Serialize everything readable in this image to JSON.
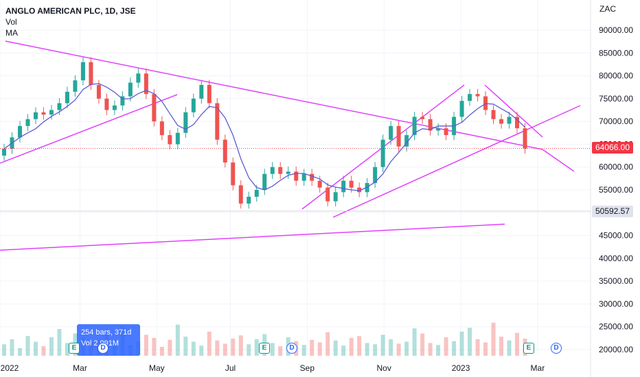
{
  "legend": {
    "title": "ANGLO AMERICAN PLC, 1D, JSE",
    "vol": "Vol",
    "ma": "MA"
  },
  "currency": "ZAC",
  "colors": {
    "up": "#26a69a",
    "down": "#ef5350",
    "ma": "#5b5bd6",
    "trendline": "#e040fb"
  },
  "price_tags": {
    "last": "64066.00",
    "marker": "50592.57"
  },
  "tooltip": {
    "line1": "254 bars, 371d",
    "line2": "Vol 2.991M"
  },
  "events": [
    "E",
    "D",
    "E",
    "D",
    "E",
    "D"
  ],
  "chart_data": {
    "type": "candlestick",
    "title": "ANGLO AMERICAN PLC, 1D, JSE",
    "x_ticks": [
      "2022",
      "Mar",
      "May",
      "Jul",
      "Sep",
      "Nov",
      "2023",
      "Mar"
    ],
    "x_tick_pos": [
      0.0,
      0.125,
      0.245,
      0.36,
      0.48,
      0.6,
      0.72,
      0.84
    ],
    "y_ticks": [
      90000,
      85000,
      80000,
      75000,
      70000,
      65000,
      60000,
      55000,
      50000,
      45000,
      40000,
      35000,
      30000,
      25000,
      20000
    ],
    "ylim": [
      19000,
      93000
    ],
    "last_price": 64066,
    "closes": [
      64000,
      66500,
      69000,
      70500,
      72000,
      71500,
      72500,
      74000,
      76500,
      79000,
      83000,
      78000,
      75000,
      72500,
      73500,
      75500,
      78500,
      80500,
      76000,
      70000,
      67000,
      65000,
      67500,
      72000,
      75000,
      78000,
      74000,
      66000,
      61000,
      56000,
      52000,
      53500,
      55000,
      58500,
      60000,
      58500,
      59000,
      57000,
      58500,
      57000,
      55500,
      52500,
      54500,
      57000,
      55500,
      54500,
      56500,
      60000,
      66000,
      69000,
      64500,
      67000,
      71000,
      70500,
      68000,
      68500,
      67000,
      71000,
      74500,
      76000,
      75500,
      72500,
      70500,
      69500,
      71000,
      68500,
      64066
    ],
    "volumes": [
      1.8,
      2.6,
      1.2,
      3.1,
      2.2,
      1.5,
      2.9,
      4.2,
      2.0,
      3.5,
      2.7,
      1.9,
      2.4,
      3.6,
      2.1,
      4.6,
      1.7,
      2.3,
      3.3,
      2.8,
      1.4,
      2.5,
      4.9,
      3.0,
      2.2,
      1.6,
      3.8,
      2.4,
      1.9,
      2.7,
      3.2,
      1.8,
      2.6,
      3.4,
      2.0,
      1.5,
      2.9,
      2.3,
      1.7,
      2.5,
      2.1,
      3.7,
      2.4,
      1.6,
      2.8,
      3.1,
      2.0,
      1.8,
      3.3,
      2.6,
      1.9,
      2.2,
      4.3,
      3.5,
      2.0,
      1.7,
      2.9,
      2.3,
      3.8,
      4.4,
      2.6,
      2.1,
      5.2,
      3.0,
      2.4,
      3.6,
      2.7
    ],
    "vol_max": 14.0
  }
}
